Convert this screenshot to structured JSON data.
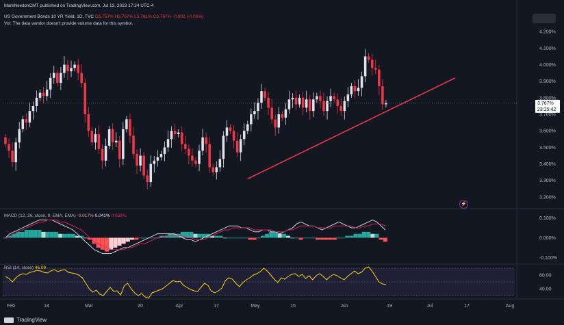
{
  "header": {
    "publisher": "MarkNewtonCMT published on TradingView.com, Jul 13, 2023 17:34 UTC-4",
    "symbol": "US Government Bonds 10 YR Yield, 1D, TVC",
    "ohlc": "O3.767% H3.767% L3.761% C3.767% -0.002 (-0.05%)",
    "vol_note": "Vol: The data vendor doesn't provide volume data for this symbol."
  },
  "macd_label": "MACD (12, 26, close, 9, EMA, EMA)",
  "macd_values": [
    "-0.017%",
    "0.041%",
    "0.058%"
  ],
  "rsi_label": "RSI (14, close)",
  "rsi_value": "46.09",
  "price_tag": {
    "price": "3.767%",
    "countdown": "23:25:42"
  },
  "footer_brand": "TradingView",
  "colors": {
    "up": "#e0e3eb",
    "down": "#f23645",
    "bg": "#131722",
    "trend": "#f23645",
    "rsi": "#ffd600",
    "macd": "#e0e3eb",
    "signal": "#e91e63",
    "hist_up": "#26a69a",
    "hist_down": "#ef9a9a"
  },
  "chart_data": [
    {
      "type": "candlestick",
      "title": "US Government Bonds 10 YR Yield",
      "y_axis_labels": [
        "4.200%",
        "4.100%",
        "4.000%",
        "3.900%",
        "3.800%",
        "3.700%",
        "3.600%",
        "3.500%",
        "3.400%",
        "3.300%",
        "3.200%"
      ],
      "x_axis_labels": [
        "Feb",
        "14",
        "Mar",
        "20",
        "Apr",
        "17",
        "May",
        "15",
        "Jun",
        "19",
        "Jul",
        "17",
        "Aug"
      ],
      "ylim": [
        3.15,
        4.3
      ],
      "closes": [
        3.52,
        3.48,
        3.41,
        3.53,
        3.61,
        3.67,
        3.65,
        3.72,
        3.75,
        3.8,
        3.83,
        3.81,
        3.85,
        3.92,
        3.95,
        3.89,
        3.95,
        4.0,
        3.96,
        3.98,
        4.0,
        3.95,
        3.89,
        3.7,
        3.6,
        3.53,
        3.58,
        3.49,
        3.42,
        3.51,
        3.61,
        3.53,
        3.54,
        3.43,
        3.61,
        3.67,
        3.57,
        3.46,
        3.39,
        3.45,
        3.33,
        3.29,
        3.4,
        3.42,
        3.44,
        3.46,
        3.5,
        3.55,
        3.6,
        3.58,
        3.59,
        3.52,
        3.49,
        3.45,
        3.42,
        3.4,
        3.48,
        3.56,
        3.52,
        3.38,
        3.35,
        3.38,
        3.43,
        3.57,
        3.62,
        3.6,
        3.54,
        3.47,
        3.55,
        3.6,
        3.64,
        3.7,
        3.72,
        3.77,
        3.84,
        3.8,
        3.74,
        3.67,
        3.62,
        3.7,
        3.68,
        3.73,
        3.79,
        3.8,
        3.76,
        3.8,
        3.74,
        3.79,
        3.72,
        3.79,
        3.81,
        3.78,
        3.72,
        3.78,
        3.81,
        3.79,
        3.75,
        3.72,
        3.78,
        3.82,
        3.87,
        3.84,
        3.86,
        3.93,
        4.05,
        4.03,
        3.98,
        3.97,
        3.87,
        3.76,
        3.767
      ],
      "trendline": {
        "from": {
          "bar": 70,
          "price": 3.31
        },
        "to": {
          "bar": 130,
          "price": 3.92
        }
      },
      "last_price": 3.767
    },
    {
      "type": "line",
      "title": "MACD (12, 26, close, 9, EMA, EMA)",
      "y_axis_labels": [
        "0.100%",
        "0.000%",
        "-0.100%"
      ],
      "ylim": [
        -0.13,
        0.13
      ],
      "series": [
        {
          "name": "Histogram",
          "values": [
            0.0,
            0.01,
            0.02,
            0.03,
            0.03,
            0.04,
            0.04,
            0.04,
            0.04,
            0.03,
            0.03,
            0.03,
            0.03,
            0.02,
            0.02,
            0.02,
            0.02,
            0.01,
            0.01,
            0.0,
            -0.01,
            -0.03,
            -0.05,
            -0.06,
            -0.07,
            -0.06,
            -0.05,
            -0.04,
            -0.03,
            -0.02,
            -0.01,
            -0.01,
            0.0,
            0.0,
            0.0,
            0.0,
            0.0,
            0.01,
            0.01,
            0.02,
            0.02,
            0.02,
            0.03,
            0.03,
            0.03,
            0.02,
            0.02,
            0.02,
            0.02,
            0.01,
            0.01,
            0.01,
            0.0,
            0.0,
            0.0,
            0.0,
            0.0,
            0.0,
            -0.01,
            -0.01,
            0.0,
            0.01,
            0.02,
            0.03,
            0.03,
            0.02,
            0.02,
            0.01,
            0.0,
            0.0,
            -0.01,
            0.0,
            0.0,
            0.0,
            -0.01,
            -0.01,
            -0.01,
            -0.01,
            -0.01,
            0.0,
            0.0,
            0.01,
            0.01,
            0.02,
            0.02,
            0.03,
            0.03,
            0.02,
            0.02,
            -0.01,
            -0.02
          ]
        },
        {
          "name": "MACD",
          "values": [
            0.0,
            0.02,
            0.03,
            0.04,
            0.05,
            0.06,
            0.07,
            0.08,
            0.09,
            0.09,
            0.09,
            0.09,
            0.08,
            0.07,
            0.06,
            0.05,
            0.04,
            0.02,
            0.0,
            -0.02,
            -0.04,
            -0.06,
            -0.07,
            -0.08,
            -0.08,
            -0.08,
            -0.07,
            -0.06,
            -0.05,
            -0.05,
            -0.04,
            -0.03,
            -0.02,
            -0.01,
            0.0,
            0.01,
            0.02,
            0.02,
            0.02,
            0.02,
            0.02,
            0.01,
            0.0,
            -0.01,
            -0.01,
            -0.02,
            -0.01,
            0.0,
            0.01,
            0.02,
            0.03,
            0.04,
            0.05,
            0.06,
            0.06,
            0.06,
            0.05,
            0.05,
            0.04,
            0.03,
            0.03,
            0.04,
            0.04,
            0.03,
            0.03,
            0.02,
            0.03,
            0.04,
            0.05,
            0.07,
            0.08,
            0.07,
            0.06,
            0.06,
            0.05,
            0.04,
            0.05,
            0.06,
            0.07,
            0.08,
            0.07,
            0.06,
            0.05,
            0.05,
            0.06,
            0.07,
            0.08,
            0.09,
            0.08,
            0.06,
            0.04
          ]
        },
        {
          "name": "Signal",
          "values": [
            0.0,
            0.01,
            0.02,
            0.03,
            0.04,
            0.05,
            0.06,
            0.07,
            0.08,
            0.08,
            0.09,
            0.09,
            0.09,
            0.08,
            0.08,
            0.07,
            0.06,
            0.05,
            0.04,
            0.02,
            0.0,
            -0.02,
            -0.03,
            -0.04,
            -0.05,
            -0.06,
            -0.06,
            -0.06,
            -0.06,
            -0.05,
            -0.05,
            -0.04,
            -0.03,
            -0.03,
            -0.02,
            -0.01,
            0.0,
            0.0,
            0.01,
            0.01,
            0.01,
            0.01,
            0.01,
            0.0,
            0.0,
            -0.01,
            -0.01,
            -0.01,
            0.0,
            0.01,
            0.02,
            0.03,
            0.04,
            0.04,
            0.05,
            0.05,
            0.05,
            0.05,
            0.05,
            0.04,
            0.04,
            0.04,
            0.04,
            0.04,
            0.03,
            0.03,
            0.03,
            0.04,
            0.04,
            0.05,
            0.06,
            0.06,
            0.06,
            0.06,
            0.05,
            0.05,
            0.05,
            0.05,
            0.06,
            0.06,
            0.06,
            0.06,
            0.06,
            0.05,
            0.05,
            0.06,
            0.06,
            0.07,
            0.07,
            0.07,
            0.06
          ]
        }
      ]
    },
    {
      "type": "line",
      "title": "RSI (14, close)",
      "y_axis_labels": [
        "60.00",
        "40.00"
      ],
      "ylim": [
        25,
        75
      ],
      "series": [
        {
          "name": "RSI",
          "values": [
            58,
            55,
            50,
            56,
            60,
            62,
            61,
            64,
            65,
            67,
            66,
            64,
            63,
            66,
            68,
            65,
            67,
            68,
            64,
            63,
            62,
            60,
            56,
            48,
            40,
            35,
            38,
            32,
            30,
            36,
            42,
            36,
            37,
            31,
            44,
            48,
            40,
            34,
            30,
            33,
            28,
            26,
            34,
            36,
            38,
            40,
            44,
            48,
            52,
            50,
            51,
            45,
            42,
            39,
            37,
            36,
            42,
            48,
            45,
            36,
            34,
            37,
            41,
            52,
            56,
            54,
            48,
            43,
            49,
            53,
            56,
            60,
            62,
            65,
            70,
            66,
            60,
            54,
            49,
            56,
            54,
            58,
            61,
            62,
            58,
            61,
            55,
            59,
            53,
            59,
            62,
            58,
            53,
            58,
            61,
            59,
            56,
            53,
            58,
            62,
            66,
            62,
            64,
            70,
            72,
            66,
            58,
            50,
            47,
            46.09
          ]
        }
      ]
    }
  ]
}
